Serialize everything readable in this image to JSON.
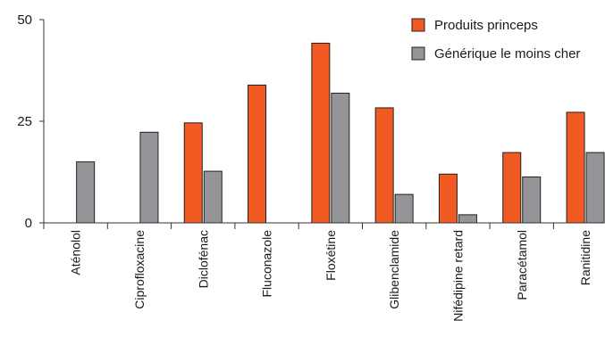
{
  "chart_data": {
    "type": "bar",
    "title": "",
    "xlabel": "",
    "ylabel": "",
    "ylim": [
      0,
      50
    ],
    "yticks": [
      0,
      25,
      50
    ],
    "grid": false,
    "legend_position": "top-right",
    "categories": [
      "Aténolol",
      "Ciprofloxacine",
      "Diclofénac",
      "Fluconazole",
      "Floxétine",
      "Glibenclamide",
      "Nifédipine retard",
      "Paracétamol",
      "Ranitidine"
    ],
    "series": [
      {
        "name": "Produits princeps",
        "color": "#f15a22",
        "values": [
          null,
          null,
          24.6,
          33.9,
          44.2,
          28.3,
          12.0,
          17.3,
          27.2
        ]
      },
      {
        "name": "Générique le moins cher",
        "color": "#939598",
        "values": [
          15.0,
          22.3,
          12.7,
          null,
          31.9,
          7.0,
          2.0,
          11.3,
          17.3
        ]
      }
    ]
  }
}
